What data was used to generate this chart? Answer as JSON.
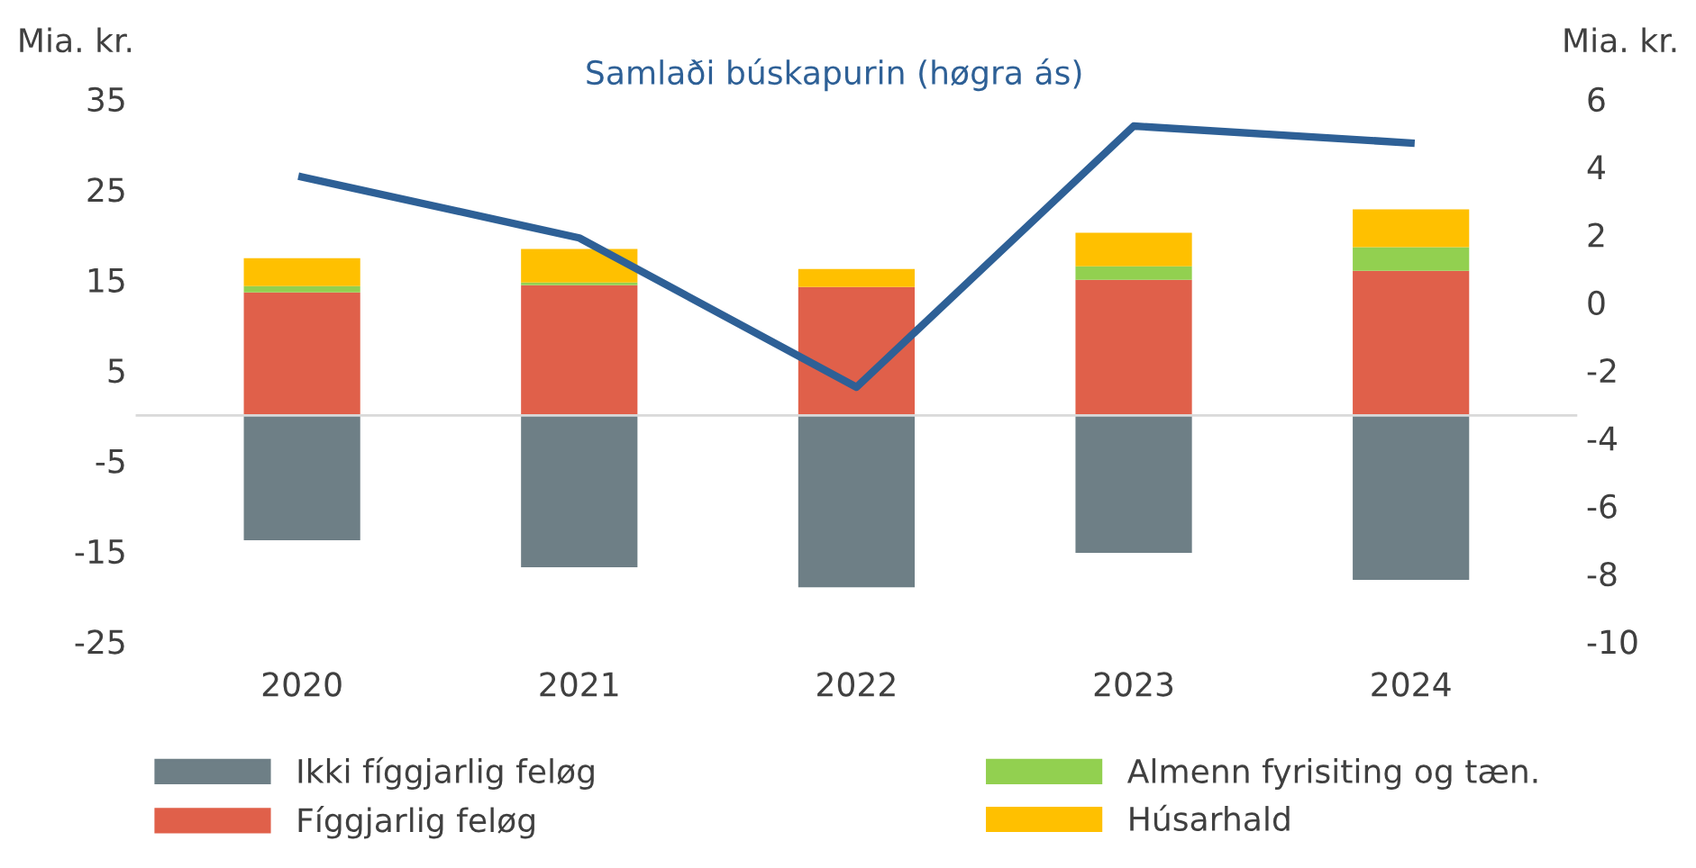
{
  "chart_data": {
    "type": "bar",
    "stacked": true,
    "categories": [
      "2020",
      "2021",
      "2022",
      "2023",
      "2024"
    ],
    "ylabel": "Mia. kr.",
    "y2label": "Mia. kr.",
    "ylim": [
      -25,
      35
    ],
    "yticks": [
      {
        "value": -25,
        "label": "-25"
      },
      {
        "value": -15,
        "label": "-15"
      },
      {
        "value": -5,
        "label": "-5"
      },
      5,
      15,
      25,
      35
    ],
    "y2lim": [
      -10,
      6
    ],
    "y2ticks": [
      {
        "value": -10,
        "label": "-10"
      },
      {
        "value": -8,
        "label": "-8"
      },
      {
        "value": -6,
        "label": "-6"
      },
      {
        "value": -4,
        "label": "-4"
      },
      {
        "value": -2,
        "label": "-2"
      },
      0,
      2,
      4,
      6
    ],
    "grid": false,
    "legend": "bottom",
    "series": [
      {
        "name": "Ikki fíggjarlig feløg",
        "color": "#6e7f86",
        "values": [
          -13.8,
          -16.8,
          -19.0,
          -15.2,
          -18.2
        ]
      },
      {
        "name": "Fíggjarlig feløg",
        "color": "#e0604a",
        "values": [
          13.6,
          14.4,
          14.2,
          15.0,
          16.0
        ]
      },
      {
        "name": "Almenn fyrisiting og tæn.",
        "color": "#92d050",
        "values": [
          0.7,
          0.3,
          0.0,
          1.5,
          2.6
        ]
      },
      {
        "name": "Húsarhald",
        "color": "#ffc000",
        "values": [
          3.1,
          3.7,
          2.0,
          3.7,
          4.2
        ]
      },
      {
        "name": "Samlaði búskapurin (høgra ás)",
        "type": "line",
        "axis": "y2",
        "color": "#2e6096",
        "values": [
          3.7,
          1.9,
          -2.5,
          5.2,
          4.7
        ]
      }
    ]
  }
}
